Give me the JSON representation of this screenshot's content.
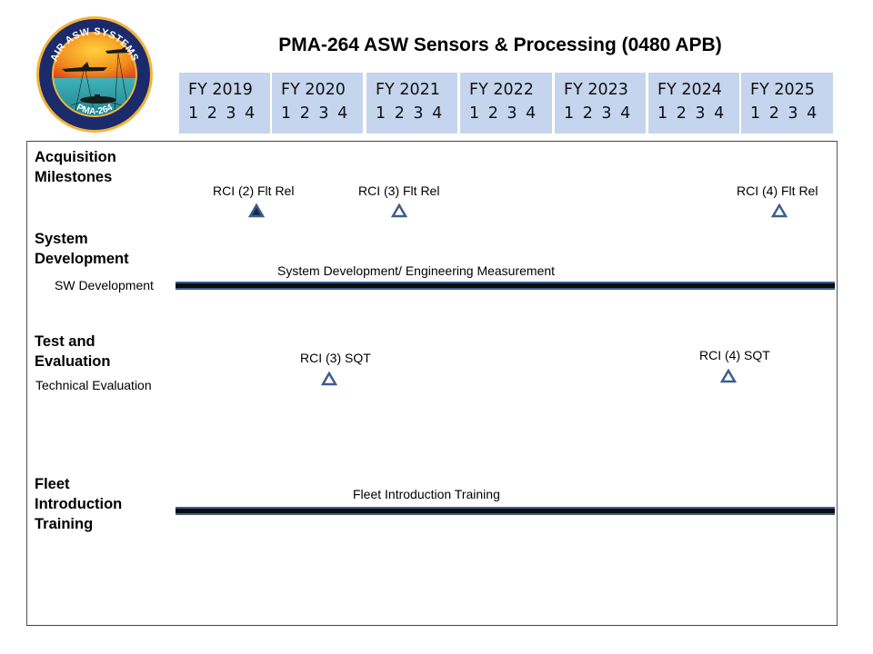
{
  "title": "PMA-264 ASW Sensors & Processing (0480 APB)",
  "logo": {
    "top_text": "AIR ASW SYSTEMS",
    "bottom_text": "PMA-264"
  },
  "fiscal_years": [
    {
      "label": "FY 2019",
      "quarters": "1 2 3 4"
    },
    {
      "label": "FY 2020",
      "quarters": "1 2 3 4"
    },
    {
      "label": "FY 2021",
      "quarters": "1 2 3 4"
    },
    {
      "label": "FY 2022",
      "quarters": "1 2 3 4"
    },
    {
      "label": "FY 2023",
      "quarters": "1 2 3 4"
    },
    {
      "label": "FY 2024",
      "quarters": "1 2 3 4"
    },
    {
      "label": "FY 2025",
      "quarters": "1 2 3 4"
    }
  ],
  "sections": {
    "acquisition": {
      "title_line1": "Acquisition",
      "title_line2": "Milestones",
      "milestones": [
        {
          "label": "RCI (2) Flt Rel",
          "status": "completed"
        },
        {
          "label": "RCI (3) Flt Rel",
          "status": "planned"
        },
        {
          "label": "RCI (4) Flt Rel",
          "status": "planned"
        }
      ]
    },
    "system_development": {
      "title_line1": "System",
      "title_line2": "Development",
      "sub_label": "SW Development",
      "bar_label": "System Development/ Engineering Measurement"
    },
    "test_evaluation": {
      "title_line1": "Test and",
      "title_line2": "Evaluation",
      "sub_label": "Technical Evaluation",
      "events": [
        {
          "label": "RCI (3) SQT",
          "status": "planned"
        },
        {
          "label": "RCI (4) SQT",
          "status": "planned"
        }
      ]
    },
    "fleet_training": {
      "title_line1": "Fleet",
      "title_line2": "Introduction",
      "title_line3": "Training",
      "bar_label": "Fleet Introduction Training"
    }
  },
  "colors": {
    "fy_header": "#c5d5ee",
    "triangle_outline": "#3c5d8f",
    "bar_fill": "#0d0d0d",
    "bar_edge": "#3c5d8f"
  }
}
